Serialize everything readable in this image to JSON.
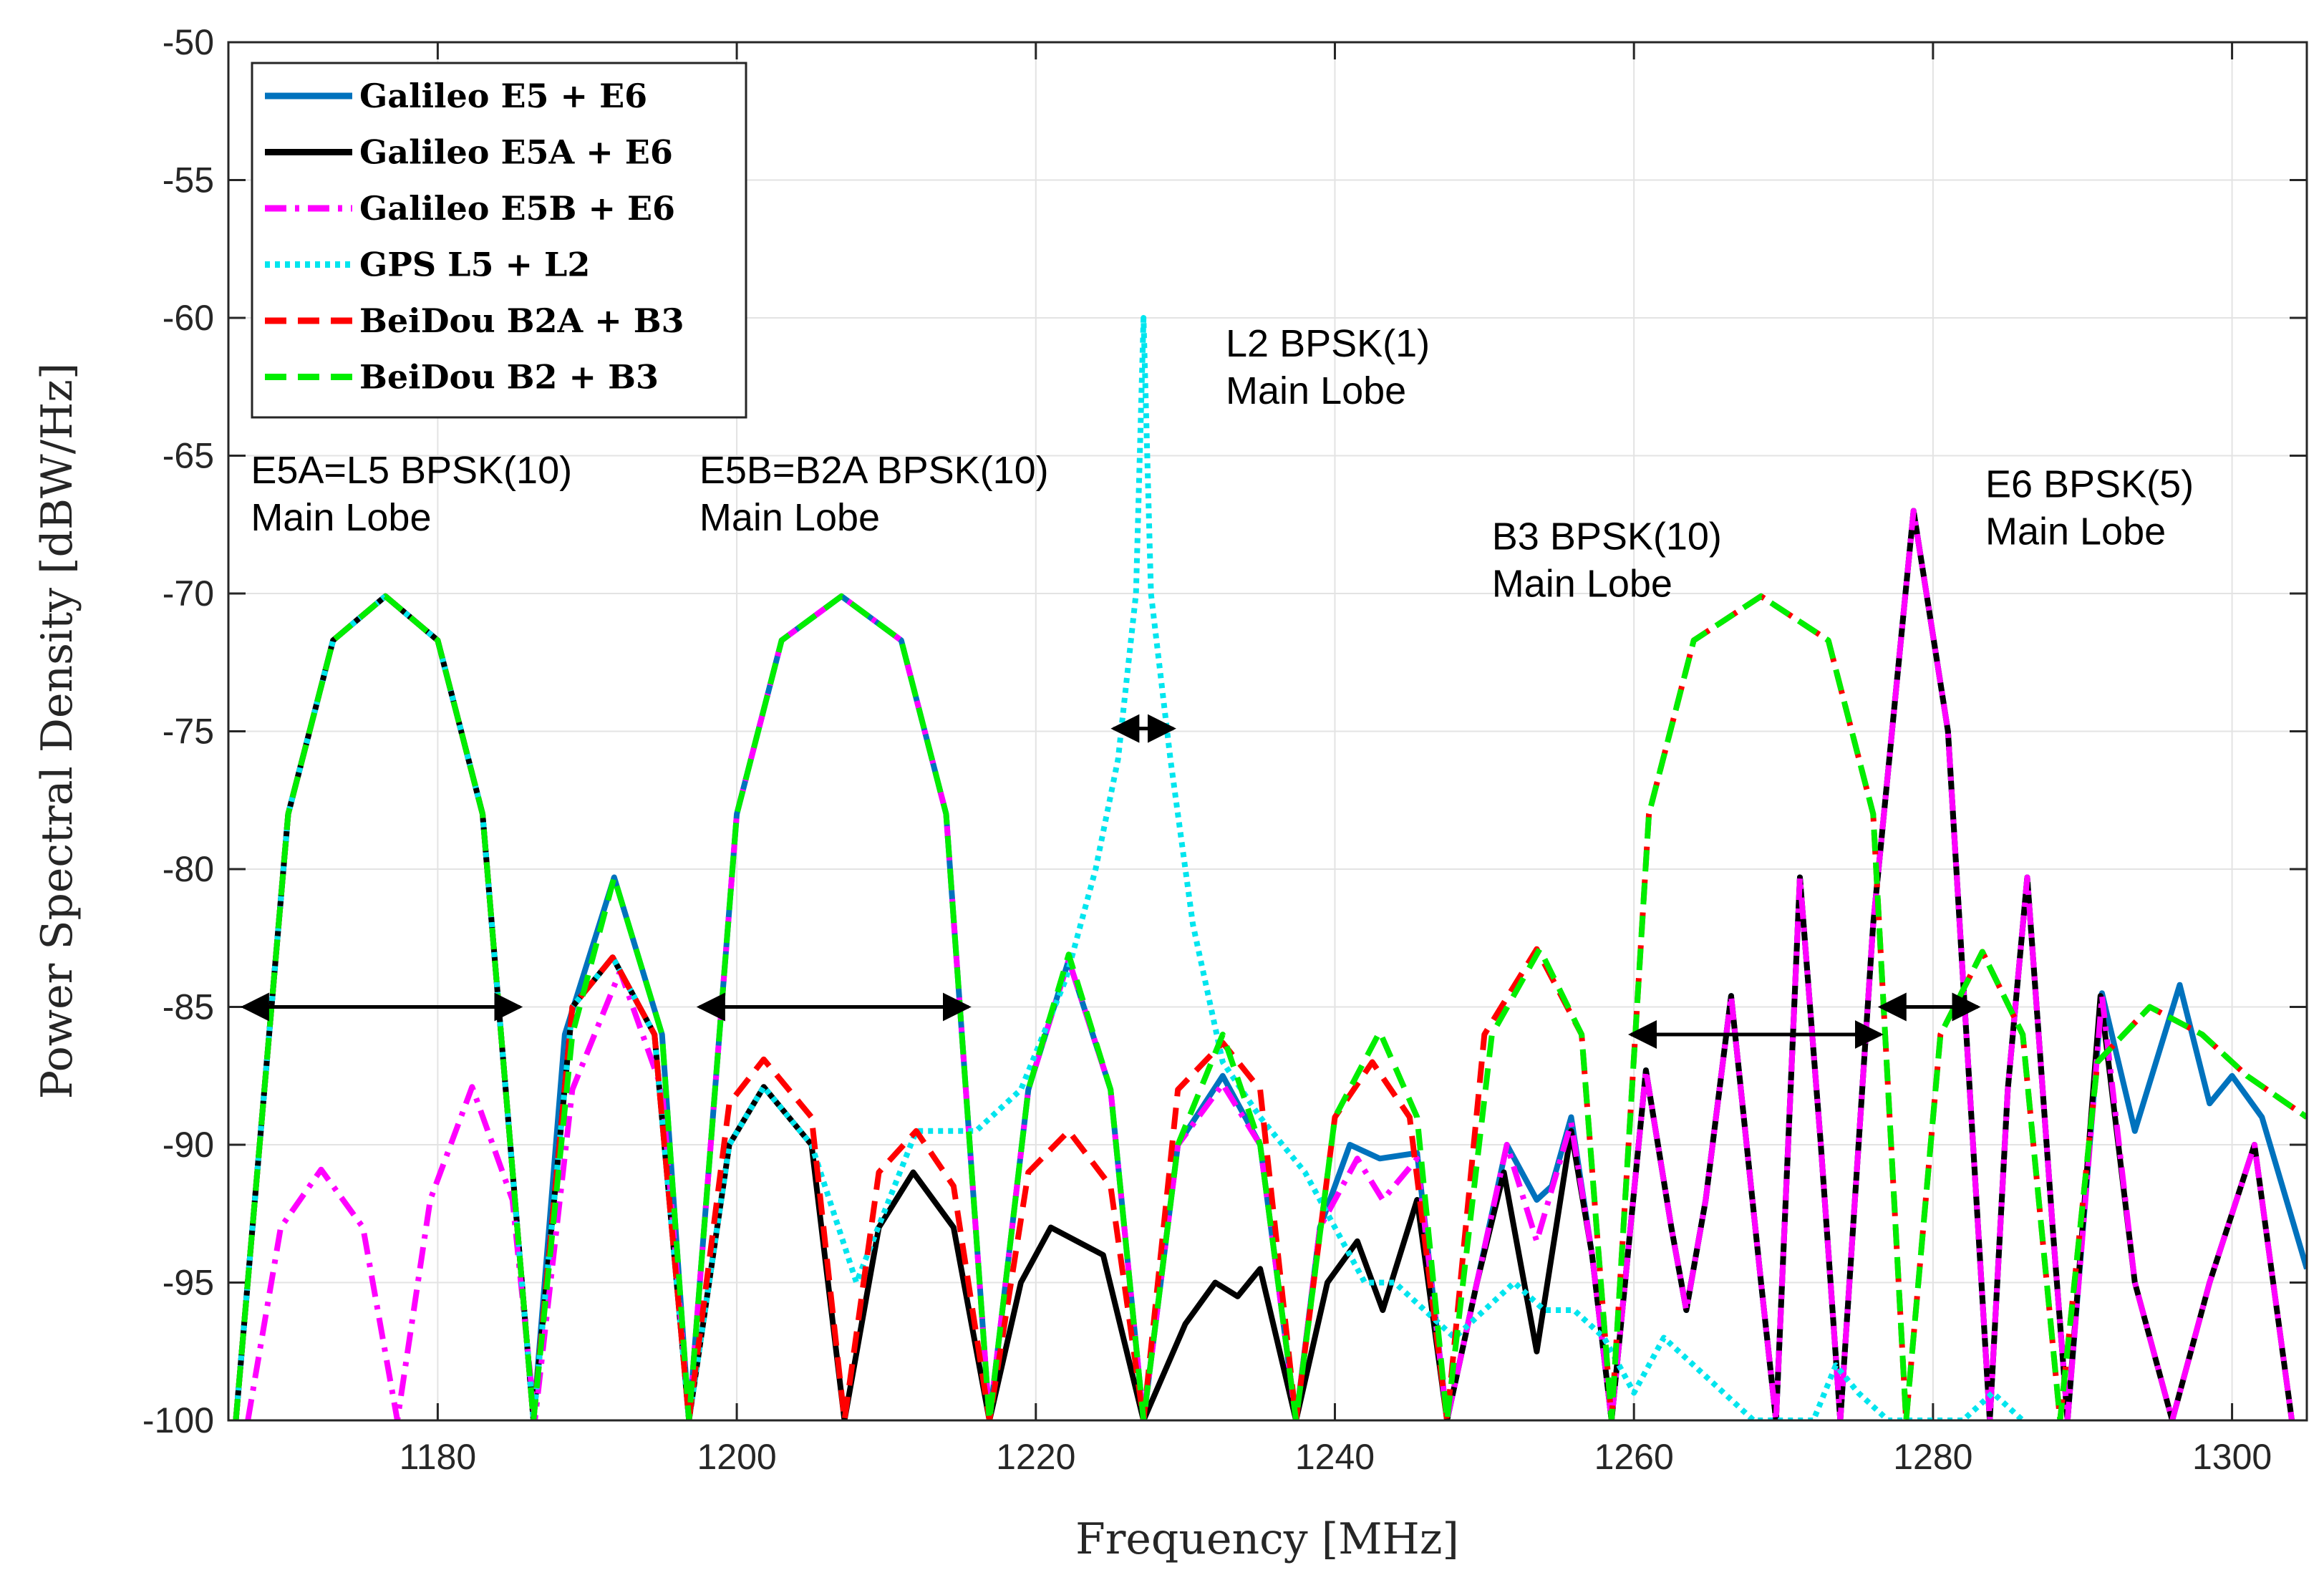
{
  "chart_data": {
    "type": "line",
    "title": "",
    "xlabel": "Frequency [MHz]",
    "ylabel": "Power Spectral Density [dBW/Hz]",
    "xlim": [
      1166,
      1305
    ],
    "ylim": [
      -100,
      -50
    ],
    "xticks": [
      1180,
      1200,
      1220,
      1240,
      1260,
      1280,
      1300
    ],
    "yticks": [
      -50,
      -55,
      -60,
      -65,
      -70,
      -75,
      -80,
      -85,
      -90,
      -95,
      -100
    ],
    "xtick_labels": [
      "1180",
      "1200",
      "1220",
      "1240",
      "1260",
      "1280",
      "1300"
    ],
    "ytick_labels": [
      "-50",
      "-55",
      "-60",
      "-65",
      "-70",
      "-75",
      "-80",
      "-85",
      "-90",
      "-95",
      "-100"
    ],
    "grid": true,
    "legend_position": "top-left",
    "series": [
      {
        "name": "Galileo E5 + E6",
        "color": "#0072BD",
        "style": "solid",
        "x": [
          1166.5,
          1170,
          1173,
          1176.5,
          1180,
          1183,
          1186.4,
          1188.5,
          1191.8,
          1195,
          1196.8,
          1200,
          1203,
          1207,
          1211,
          1214,
          1216.9,
          1219.5,
          1222.2,
          1225,
          1227.2,
          1229.5,
          1232.5,
          1235,
          1237.4,
          1239,
          1241,
          1243,
          1245.5,
          1247.5,
          1249.5,
          1251.5,
          1253.5,
          1254.5,
          1255.8,
          1257.2,
          1258.5,
          1260.8,
          1262.5,
          1263.5,
          1264.8,
          1266.5,
          1268.5,
          1269.5,
          1271.1,
          1272.5,
          1273.8,
          1276,
          1278.7,
          1281,
          1283.8,
          1285,
          1286.3,
          1288,
          1289,
          1291.3,
          1293.5,
          1296.5,
          1298.5,
          1300,
          1302,
          1305
        ],
        "y": [
          -100,
          -78,
          -71.7,
          -70.1,
          -71.7,
          -78,
          -100,
          -86,
          -80.3,
          -86,
          -100,
          -78,
          -71.7,
          -70.1,
          -71.7,
          -78,
          -100,
          -88,
          -83.3,
          -88,
          -100,
          -90,
          -87.5,
          -90,
          -100,
          -93,
          -90,
          -90.5,
          -90.3,
          -100,
          -95,
          -90,
          -92,
          -91.5,
          -89,
          -94,
          -100,
          -87.3,
          -93,
          -96,
          -92,
          -84.6,
          -95,
          -100,
          -80.3,
          -90,
          -100,
          -82,
          -67,
          -75,
          -100,
          -88,
          -80.3,
          -93,
          -100,
          -84.5,
          -89.5,
          -84.2,
          -88.5,
          -87.5,
          -89,
          -94.5
        ]
      },
      {
        "name": "Galileo E5A + E6",
        "color": "#000000",
        "style": "solid",
        "x": [
          1166.5,
          1170,
          1173,
          1176.5,
          1180,
          1183,
          1186.4,
          1189,
          1191.7,
          1194.5,
          1196.8,
          1199.5,
          1201.8,
          1205,
          1207.2,
          1209.5,
          1211.8,
          1214.5,
          1216.9,
          1219,
          1221,
          1224.5,
          1227.2,
          1230,
          1232,
          1233.5,
          1235,
          1237.4,
          1239.5,
          1241.5,
          1243.2,
          1245.5,
          1247.5,
          1249.5,
          1251.3,
          1253.5,
          1255.8,
          1257.2,
          1258.5,
          1260.8,
          1262.5,
          1263.5,
          1264.8,
          1266.5,
          1268.5,
          1269.5,
          1271.1,
          1272.5,
          1273.8,
          1276,
          1278.7,
          1281,
          1283.8,
          1285,
          1286.3,
          1288,
          1289,
          1291.2,
          1293.5,
          1296,
          1298.5,
          1301.5,
          1304
        ],
        "y": [
          -100,
          -78,
          -71.7,
          -70.1,
          -71.7,
          -78,
          -100,
          -85,
          -83.2,
          -86,
          -100,
          -90,
          -87.9,
          -90,
          -100,
          -93,
          -91,
          -93,
          -100,
          -95,
          -93,
          -94,
          -100,
          -96.5,
          -95,
          -95.5,
          -94.5,
          -100,
          -95,
          -93.5,
          -96,
          -92,
          -100,
          -95,
          -91,
          -97.5,
          -89.5,
          -94,
          -100,
          -87.3,
          -93,
          -96,
          -92,
          -84.6,
          -95,
          -100,
          -80.3,
          -90,
          -100,
          -82,
          -67,
          -75,
          -100,
          -88,
          -80.3,
          -93,
          -100,
          -84.6,
          -95,
          -100,
          -95,
          -90,
          -100
        ]
      },
      {
        "name": "Galileo E5B + E6",
        "color": "#FF00FF",
        "style": "dashdot",
        "x": [
          1167.3,
          1169.5,
          1172.2,
          1175,
          1177.3,
          1179.5,
          1182.3,
          1185,
          1186.5,
          1189,
          1192.2,
          1195,
          1196.8,
          1200,
          1203,
          1207,
          1211,
          1214,
          1216.9,
          1219.5,
          1222.2,
          1225,
          1227.2,
          1229.5,
          1232.5,
          1235,
          1237.4,
          1239,
          1241.5,
          1243.2,
          1245.5,
          1247.5,
          1249.5,
          1251.5,
          1253.5,
          1255.8,
          1257.2,
          1258.5,
          1260.8,
          1262.5,
          1263.5,
          1264.8,
          1266.5,
          1268.5,
          1269.5,
          1271.1,
          1272.5,
          1273.8,
          1276,
          1278.7,
          1281,
          1283.8,
          1285,
          1286.3,
          1288,
          1289,
          1291.3,
          1293.5,
          1296,
          1298.5,
          1301.5,
          1304
        ],
        "y": [
          -100,
          -93,
          -90.9,
          -93,
          -100,
          -92,
          -87.9,
          -92,
          -100,
          -88,
          -83.7,
          -88,
          -100,
          -78,
          -71.7,
          -70.1,
          -71.7,
          -78,
          -100,
          -88,
          -83.3,
          -88,
          -100,
          -90,
          -87.8,
          -90,
          -100,
          -93,
          -90.5,
          -92,
          -90.5,
          -100,
          -95,
          -90,
          -93.5,
          -89.2,
          -94,
          -100,
          -87.3,
          -93,
          -96,
          -92,
          -84.6,
          -95,
          -100,
          -80.3,
          -90,
          -100,
          -82,
          -67,
          -75,
          -100,
          -88,
          -80.3,
          -93,
          -100,
          -84.6,
          -95,
          -100,
          -95,
          -90,
          -100
        ]
      },
      {
        "name": "GPS L5 + L2",
        "color": "#00E5EE",
        "style": "dotted",
        "x": [
          1166.5,
          1170,
          1173,
          1176.5,
          1180,
          1183,
          1186.4,
          1189,
          1191.7,
          1194.5,
          1196.8,
          1199.5,
          1201.8,
          1205,
          1208,
          1212,
          1216,
          1219,
          1222,
          1224,
          1225.5,
          1226.7,
          1227.2,
          1227.7,
          1229,
          1230.5,
          1232.5,
          1235,
          1238,
          1240,
          1242,
          1244,
          1246,
          1248,
          1250,
          1252,
          1254,
          1256,
          1258,
          1260,
          1262,
          1264,
          1266,
          1268,
          1270,
          1272,
          1273.5,
          1275,
          1277,
          1282,
          1284,
          1286
        ],
        "y": [
          -100,
          -78,
          -71.7,
          -70.1,
          -71.7,
          -78,
          -100,
          -85,
          -83.2,
          -86,
          -100,
          -90,
          -87.9,
          -90,
          -95,
          -89.5,
          -89.5,
          -88,
          -84,
          -80,
          -76,
          -70,
          -60,
          -70,
          -76,
          -82,
          -87,
          -89,
          -91,
          -93,
          -95,
          -95,
          -96,
          -97,
          -96,
          -95,
          -96,
          -96,
          -97,
          -99,
          -97,
          -98,
          -99,
          -100,
          -100,
          -100,
          -98,
          -99,
          -100,
          -100,
          -99,
          -100
        ]
      },
      {
        "name": "BeiDou B2A + B3",
        "color": "#FF0000",
        "style": "dashed",
        "x": [
          1166.5,
          1170,
          1173,
          1176.5,
          1180,
          1183,
          1186.4,
          1189,
          1191.7,
          1194.5,
          1196.8,
          1199.5,
          1201.8,
          1205,
          1207.2,
          1209.5,
          1212,
          1214.5,
          1216.9,
          1219.5,
          1222.2,
          1225,
          1227.2,
          1229.5,
          1232.5,
          1235,
          1237.4,
          1240,
          1242.5,
          1245,
          1247.5,
          1250,
          1253.5,
          1256.5,
          1258.5,
          1261,
          1264,
          1268.5,
          1273,
          1276,
          1278.2,
          1280.5,
          1283.3,
          1286,
          1288.5,
          1291,
          1294.5,
          1298,
          1301,
          1305
        ],
        "y": [
          -100,
          -78,
          -71.7,
          -70.1,
          -71.7,
          -78,
          -100,
          -85,
          -83.2,
          -86,
          -100,
          -88.5,
          -86.9,
          -89,
          -100,
          -91,
          -89.5,
          -91.5,
          -100,
          -91,
          -89.5,
          -91.5,
          -100,
          -88,
          -86.3,
          -88,
          -100,
          -89,
          -87,
          -89,
          -100,
          -86,
          -82.9,
          -86,
          -100,
          -78,
          -71.7,
          -70.1,
          -71.7,
          -78,
          -100,
          -86,
          -83,
          -86,
          -100,
          -87,
          -85,
          -86,
          -87.5,
          -89
        ]
      },
      {
        "name": "BeiDou B2 + B3",
        "color": "#00EE00",
        "style": "dashed",
        "x": [
          1166.5,
          1170,
          1173,
          1176.5,
          1180,
          1183,
          1186.4,
          1189,
          1191.8,
          1195,
          1196.8,
          1200,
          1203,
          1207,
          1211,
          1214,
          1216.9,
          1219.5,
          1222.2,
          1225,
          1227.2,
          1229.5,
          1232.5,
          1235,
          1237.4,
          1240,
          1243,
          1245.5,
          1247.5,
          1250.5,
          1253.7,
          1256.5,
          1258.5,
          1261,
          1264,
          1268.5,
          1273,
          1276,
          1278.2,
          1280.5,
          1283.3,
          1286,
          1288.5,
          1291,
          1294.5,
          1298,
          1301,
          1305
        ],
        "y": [
          -100,
          -78,
          -71.7,
          -70.1,
          -71.7,
          -78,
          -100,
          -86,
          -80.3,
          -86,
          -100,
          -78,
          -71.7,
          -70.1,
          -71.7,
          -78,
          -100,
          -88,
          -83.1,
          -88,
          -100,
          -90,
          -86,
          -90,
          -100,
          -89,
          -85.9,
          -89,
          -100,
          -86,
          -82.9,
          -86,
          -100,
          -78,
          -71.7,
          -70.1,
          -71.7,
          -78,
          -100,
          -86,
          -83,
          -86,
          -100,
          -87,
          -85,
          -86,
          -87.5,
          -89
        ]
      }
    ],
    "annotations": [
      {
        "text": [
          "E5A=L5 BPSK(10)",
          "Main Lobe"
        ],
        "anchor": [
          1167.5,
          -66
        ]
      },
      {
        "text": [
          "E5B=B2A BPSK(10)",
          "Main Lobe"
        ],
        "anchor": [
          1197.5,
          -66
        ]
      },
      {
        "text": [
          "L2 BPSK(1)",
          "Main Lobe"
        ],
        "anchor": [
          1232.7,
          -61.4
        ]
      },
      {
        "text": [
          "B3 BPSK(10)",
          "Main Lobe"
        ],
        "anchor": [
          1250.5,
          -68.4
        ]
      },
      {
        "text": [
          "E6 BPSK(5)",
          "Main Lobe"
        ],
        "anchor": [
          1283.5,
          -66.5
        ]
      }
    ],
    "arrows": [
      {
        "x1": 1167,
        "x2": 1185.5,
        "y": -85
      },
      {
        "x1": 1197.5,
        "x2": 1215.5,
        "y": -85
      },
      {
        "x1": 1225.2,
        "x2": 1229.2,
        "y": -74.9
      },
      {
        "x1": 1259.8,
        "x2": 1276.5,
        "y": -86
      },
      {
        "x1": 1276.5,
        "x2": 1283,
        "y": -85
      }
    ]
  }
}
